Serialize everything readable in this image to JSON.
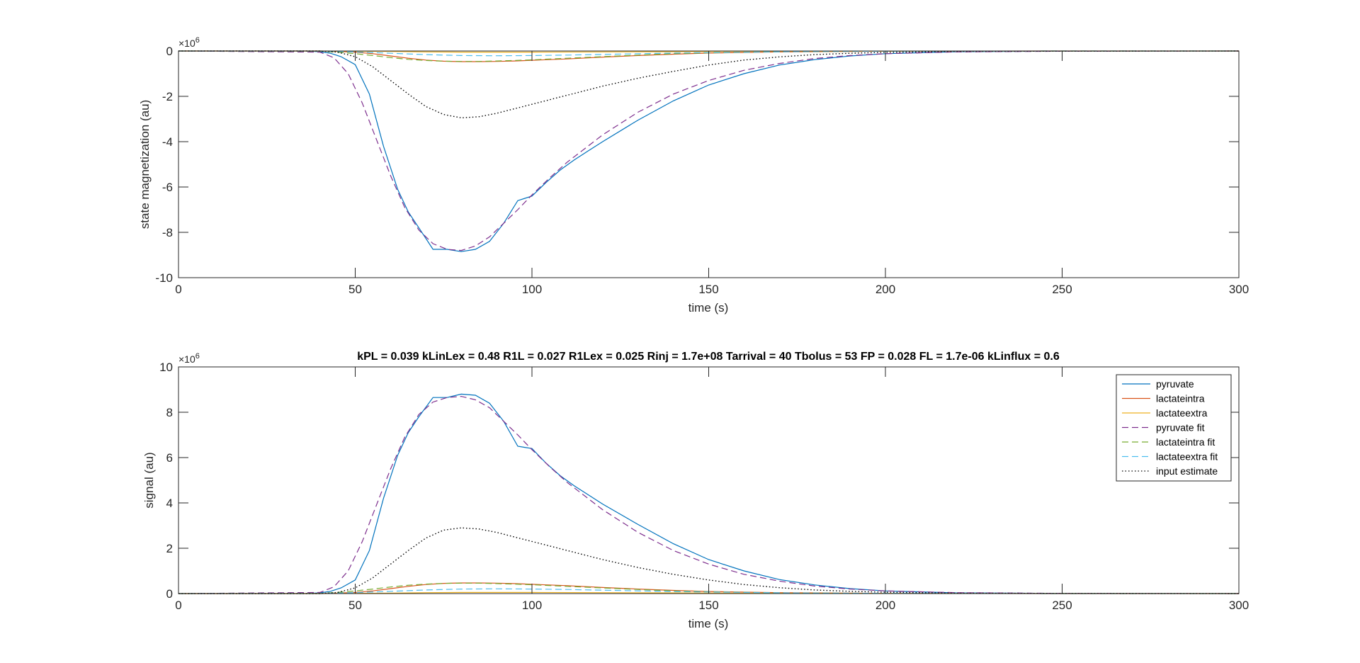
{
  "chart_data": [
    {
      "type": "line",
      "title": "",
      "xlabel": "time (s)",
      "ylabel": "state magnetization (au)",
      "xlim": [
        0,
        300
      ],
      "ylim": [
        -10,
        0
      ],
      "y_exponent_label": "×10",
      "y_exponent": "6",
      "y_multiplier": 1000000,
      "xticks": [
        0,
        50,
        100,
        150,
        200,
        250,
        300
      ],
      "yticks": [
        -10,
        -8,
        -6,
        -4,
        -2,
        0
      ],
      "xtick_labels": [
        "0",
        "50",
        "100",
        "150",
        "200",
        "250",
        "300"
      ],
      "ytick_labels": [
        "-10",
        "-8",
        "-6",
        "-4",
        "-2",
        "0"
      ],
      "grid": false,
      "legend": false,
      "series": [
        {
          "key": "pyruvate",
          "color": "#0072BD",
          "style": "solid",
          "x": [
            0,
            36,
            40,
            43,
            46,
            50,
            54,
            58,
            62,
            65,
            68,
            72,
            76,
            80,
            84,
            88,
            92,
            96,
            98,
            100,
            104,
            108,
            112,
            116,
            120,
            130,
            140,
            150,
            160,
            170,
            180,
            190,
            200,
            220,
            250,
            300
          ],
          "y": [
            0,
            0,
            -0.03,
            -0.1,
            -0.25,
            -0.6,
            -1.9,
            -4.2,
            -6.1,
            -7.1,
            -7.8,
            -8.75,
            -8.75,
            -8.85,
            -8.75,
            -8.4,
            -7.6,
            -6.6,
            -6.5,
            -6.4,
            -5.8,
            -5.25,
            -4.8,
            -4.4,
            -4.0,
            -3.05,
            -2.2,
            -1.5,
            -1.0,
            -0.62,
            -0.38,
            -0.22,
            -0.12,
            -0.03,
            -0.005,
            0
          ]
        },
        {
          "key": "lactateintra",
          "color": "#D95319",
          "style": "solid",
          "x": [
            0,
            40,
            45,
            50,
            55,
            60,
            65,
            70,
            75,
            80,
            85,
            90,
            95,
            100,
            110,
            120,
            130,
            140,
            150,
            170,
            200,
            250,
            300
          ],
          "y": [
            0,
            0,
            -0.02,
            -0.05,
            -0.12,
            -0.22,
            -0.32,
            -0.4,
            -0.45,
            -0.47,
            -0.47,
            -0.46,
            -0.44,
            -0.41,
            -0.35,
            -0.27,
            -0.2,
            -0.14,
            -0.09,
            -0.04,
            -0.01,
            0,
            0
          ]
        },
        {
          "key": "lactateextra",
          "color": "#EDB120",
          "style": "solid",
          "x": [
            0,
            40,
            50,
            60,
            70,
            80,
            90,
            100,
            120,
            140,
            160,
            200,
            300
          ],
          "y": [
            0,
            0,
            -0.01,
            -0.02,
            -0.04,
            -0.05,
            -0.05,
            -0.05,
            -0.04,
            -0.03,
            -0.015,
            -0.005,
            0
          ]
        },
        {
          "key": "pyruvate_fit",
          "color": "#7E2F8E",
          "style": "dashed",
          "x": [
            0,
            40,
            44,
            48,
            52,
            56,
            60,
            64,
            68,
            72,
            76,
            80,
            84,
            88,
            92,
            96,
            100,
            105,
            110,
            115,
            120,
            130,
            140,
            150,
            160,
            170,
            180,
            190,
            200,
            220,
            250,
            300
          ],
          "y": [
            0,
            -0.05,
            -0.3,
            -1.0,
            -2.3,
            -3.9,
            -5.5,
            -6.9,
            -7.9,
            -8.5,
            -8.75,
            -8.8,
            -8.6,
            -8.2,
            -7.6,
            -7.0,
            -6.35,
            -5.6,
            -4.9,
            -4.3,
            -3.7,
            -2.7,
            -1.9,
            -1.3,
            -0.85,
            -0.55,
            -0.33,
            -0.2,
            -0.12,
            -0.04,
            -0.01,
            0
          ]
        },
        {
          "key": "lactateintra_fit",
          "color": "#77AC30",
          "style": "dashed",
          "x": [
            0,
            40,
            45,
            50,
            55,
            60,
            65,
            70,
            75,
            80,
            85,
            90,
            95,
            100,
            110,
            120,
            130,
            140,
            150,
            170,
            200,
            250,
            300
          ],
          "y": [
            0,
            -0.01,
            -0.05,
            -0.12,
            -0.2,
            -0.29,
            -0.37,
            -0.42,
            -0.45,
            -0.46,
            -0.46,
            -0.44,
            -0.42,
            -0.39,
            -0.32,
            -0.25,
            -0.18,
            -0.12,
            -0.08,
            -0.03,
            -0.01,
            0,
            0
          ]
        },
        {
          "key": "lactateextra_fit",
          "color": "#4DBEEE",
          "style": "dashed",
          "x": [
            0,
            40,
            50,
            60,
            70,
            80,
            90,
            100,
            110,
            120,
            140,
            160,
            180,
            200,
            250,
            300
          ],
          "y": [
            0,
            0,
            -0.04,
            -0.1,
            -0.16,
            -0.2,
            -0.21,
            -0.2,
            -0.18,
            -0.15,
            -0.09,
            -0.05,
            -0.02,
            -0.01,
            0,
            0
          ]
        },
        {
          "key": "input_estimate",
          "color": "#000000",
          "style": "dotted",
          "x": [
            0,
            40,
            45,
            50,
            55,
            60,
            65,
            70,
            75,
            80,
            85,
            90,
            95,
            100,
            110,
            120,
            130,
            140,
            150,
            160,
            170,
            180,
            190,
            200,
            220,
            250,
            300
          ],
          "y": [
            0,
            0,
            -0.05,
            -0.25,
            -0.7,
            -1.3,
            -1.9,
            -2.45,
            -2.8,
            -2.95,
            -2.9,
            -2.75,
            -2.55,
            -2.35,
            -1.95,
            -1.55,
            -1.2,
            -0.9,
            -0.62,
            -0.4,
            -0.26,
            -0.16,
            -0.1,
            -0.06,
            -0.02,
            -0.005,
            0
          ]
        }
      ]
    },
    {
      "type": "line",
      "title": "kPL = 0.039 kLinLex = 0.48 R1L = 0.027 R1Lex = 0.025 Rinj = 1.7e+08 Tarrival = 40 Tbolus = 53 FP = 0.028 FL = 1.7e-06 kLinflux = 0.6",
      "xlabel": "time (s)",
      "ylabel": "signal (au)",
      "xlim": [
        0,
        300
      ],
      "ylim": [
        0,
        10
      ],
      "y_exponent_label": "×10",
      "y_exponent": "6",
      "y_multiplier": 1000000,
      "xticks": [
        0,
        50,
        100,
        150,
        200,
        250,
        300
      ],
      "yticks": [
        0,
        2,
        4,
        6,
        8,
        10
      ],
      "xtick_labels": [
        "0",
        "50",
        "100",
        "150",
        "200",
        "250",
        "300"
      ],
      "ytick_labels": [
        "0",
        "2",
        "4",
        "6",
        "8",
        "10"
      ],
      "grid": false,
      "legend": true,
      "legend_position": "top-right",
      "series": [
        {
          "key": "pyruvate",
          "name": "pyruvate",
          "color": "#0072BD",
          "style": "solid",
          "x": [
            0,
            36,
            40,
            43,
            46,
            50,
            54,
            58,
            62,
            65,
            68,
            72,
            76,
            80,
            84,
            88,
            92,
            96,
            98,
            100,
            104,
            108,
            112,
            116,
            120,
            130,
            140,
            150,
            160,
            170,
            180,
            190,
            200,
            220,
            250,
            300
          ],
          "y": [
            0,
            0,
            0.03,
            0.1,
            0.25,
            0.6,
            1.9,
            4.2,
            6.1,
            7.1,
            7.8,
            8.65,
            8.65,
            8.8,
            8.75,
            8.4,
            7.6,
            6.5,
            6.45,
            6.4,
            5.75,
            5.2,
            4.75,
            4.35,
            3.95,
            3.05,
            2.2,
            1.5,
            1.0,
            0.62,
            0.38,
            0.22,
            0.12,
            0.03,
            0.005,
            0
          ]
        },
        {
          "key": "lactateintra",
          "name": "lactateintra",
          "color": "#D95319",
          "style": "solid",
          "x": [
            0,
            40,
            45,
            50,
            55,
            60,
            65,
            70,
            75,
            80,
            85,
            90,
            95,
            100,
            110,
            120,
            130,
            140,
            150,
            170,
            200,
            250,
            300
          ],
          "y": [
            0,
            0,
            0.02,
            0.05,
            0.12,
            0.22,
            0.32,
            0.4,
            0.45,
            0.47,
            0.47,
            0.46,
            0.44,
            0.41,
            0.35,
            0.27,
            0.2,
            0.14,
            0.09,
            0.04,
            0.01,
            0,
            0
          ]
        },
        {
          "key": "lactateextra",
          "name": "lactateextra",
          "color": "#EDB120",
          "style": "solid",
          "x": [
            0,
            40,
            50,
            60,
            70,
            80,
            90,
            100,
            120,
            140,
            160,
            200,
            300
          ],
          "y": [
            0,
            0,
            0.01,
            0.02,
            0.04,
            0.05,
            0.05,
            0.05,
            0.04,
            0.03,
            0.015,
            0.005,
            0
          ]
        },
        {
          "key": "pyruvate_fit",
          "name": "pyruvate fit",
          "color": "#7E2F8E",
          "style": "dashed",
          "x": [
            0,
            40,
            44,
            48,
            52,
            56,
            60,
            64,
            68,
            72,
            76,
            80,
            84,
            88,
            92,
            96,
            100,
            105,
            110,
            115,
            120,
            130,
            140,
            150,
            160,
            170,
            180,
            190,
            200,
            220,
            250,
            300
          ],
          "y": [
            0,
            0.05,
            0.3,
            1.0,
            2.3,
            3.9,
            5.5,
            6.9,
            7.9,
            8.45,
            8.65,
            8.7,
            8.55,
            8.2,
            7.6,
            7.0,
            6.35,
            5.6,
            4.9,
            4.3,
            3.7,
            2.7,
            1.9,
            1.3,
            0.85,
            0.55,
            0.33,
            0.2,
            0.12,
            0.04,
            0.01,
            0
          ]
        },
        {
          "key": "lactateintra_fit",
          "name": "lactateintra fit",
          "color": "#77AC30",
          "style": "dashed",
          "x": [
            0,
            40,
            45,
            50,
            55,
            60,
            65,
            70,
            75,
            80,
            85,
            90,
            95,
            100,
            110,
            120,
            130,
            140,
            150,
            170,
            200,
            250,
            300
          ],
          "y": [
            0,
            0.01,
            0.05,
            0.12,
            0.2,
            0.29,
            0.37,
            0.42,
            0.45,
            0.46,
            0.46,
            0.44,
            0.42,
            0.39,
            0.32,
            0.25,
            0.18,
            0.12,
            0.08,
            0.03,
            0.01,
            0,
            0
          ]
        },
        {
          "key": "lactateextra_fit",
          "name": "lactateextra fit",
          "color": "#4DBEEE",
          "style": "dashed",
          "x": [
            0,
            40,
            50,
            60,
            70,
            80,
            90,
            100,
            110,
            120,
            140,
            160,
            180,
            200,
            250,
            300
          ],
          "y": [
            0,
            0,
            0.04,
            0.1,
            0.16,
            0.2,
            0.21,
            0.2,
            0.18,
            0.15,
            0.09,
            0.05,
            0.02,
            0.01,
            0,
            0
          ]
        },
        {
          "key": "input_estimate",
          "name": "input estimate",
          "color": "#000000",
          "style": "dotted",
          "x": [
            0,
            40,
            45,
            50,
            55,
            60,
            65,
            70,
            75,
            80,
            85,
            90,
            95,
            100,
            110,
            120,
            130,
            140,
            150,
            160,
            170,
            180,
            190,
            200,
            220,
            250,
            300
          ],
          "y": [
            0,
            0,
            0.05,
            0.25,
            0.7,
            1.3,
            1.9,
            2.45,
            2.8,
            2.9,
            2.85,
            2.7,
            2.5,
            2.3,
            1.9,
            1.5,
            1.15,
            0.85,
            0.6,
            0.4,
            0.26,
            0.16,
            0.1,
            0.06,
            0.02,
            0.005,
            0
          ]
        }
      ]
    }
  ]
}
